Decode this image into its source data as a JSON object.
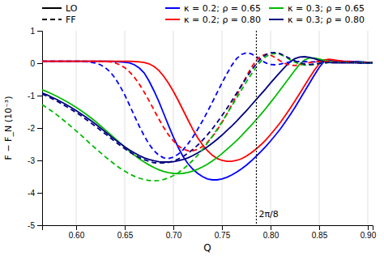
{
  "chart_data": {
    "type": "line",
    "title": "",
    "xlabel": "Q",
    "ylabel": "F − F_N (10⁻³)",
    "xlim": [
      0.565,
      0.905
    ],
    "ylim": [
      -5,
      1
    ],
    "xticks": [
      {
        "value": 0.6,
        "label": "0.60"
      },
      0.65,
      {
        "value": 0.7,
        "label": "0.70"
      },
      0.75,
      {
        "value": 0.8,
        "label": "0.80"
      },
      0.85,
      {
        "value": 0.9,
        "label": "0.90"
      }
    ],
    "yticks": [
      -5,
      -4,
      -3,
      -2,
      -1,
      0,
      1
    ],
    "grid": "x",
    "legend": "upper right",
    "x": [
      0.565,
      0.57,
      0.575,
      0.58,
      0.585,
      0.59,
      0.595,
      0.6,
      0.605,
      0.61,
      0.615,
      0.62,
      0.625,
      0.63,
      0.635,
      0.64,
      0.645,
      0.65,
      0.655,
      0.66,
      0.665,
      0.67,
      0.675,
      0.68,
      0.685,
      0.69,
      0.695,
      0.7,
      0.705,
      0.71,
      0.715,
      0.72,
      0.725,
      0.73,
      0.735,
      0.74,
      0.745,
      0.75,
      0.755,
      0.76,
      0.765,
      0.77,
      0.775,
      0.78,
      0.785,
      0.79,
      0.795,
      0.8,
      0.805,
      0.81,
      0.815,
      0.82,
      0.825,
      0.83,
      0.835,
      0.84,
      0.845,
      0.85,
      0.855,
      0.86,
      0.865,
      0.87,
      0.875,
      0.88,
      0.885,
      0.89,
      0.895,
      0.9,
      0.905
    ],
    "series": [
      {
        "name": "κ = 0.2; ρ = 0.65",
        "color": "#0000ff",
        "line_style": "solid",
        "values": [
          0.06,
          0.06,
          0.06,
          0.06,
          0.06,
          0.06,
          0.06,
          0.06,
          0.06,
          0.06,
          0.06,
          0.06,
          0.06,
          0.06,
          0.06,
          0.05,
          0.04,
          0.03,
          0.01,
          -0.05,
          -0.15,
          -0.3,
          -0.55,
          -0.85,
          -1.18,
          -1.55,
          -1.92,
          -2.28,
          -2.6,
          -2.88,
          -3.1,
          -3.27,
          -3.4,
          -3.5,
          -3.57,
          -3.6,
          -3.6,
          -3.57,
          -3.52,
          -3.45,
          -3.36,
          -3.26,
          -3.15,
          -3.02,
          -2.88,
          -2.73,
          -2.57,
          -2.4,
          -2.22,
          -2.03,
          -1.82,
          -1.6,
          -1.37,
          -1.12,
          -0.87,
          -0.62,
          -0.37,
          -0.13,
          0.05,
          0.08,
          0.08,
          0.07,
          0.06,
          0.06,
          0.05,
          0.05,
          0.04,
          0.03,
          0.02
        ]
      },
      {
        "name": "κ = 0.2; ρ = 0.80",
        "color": "#ff0000",
        "line_style": "solid",
        "values": [
          0.06,
          0.06,
          0.06,
          0.06,
          0.06,
          0.06,
          0.06,
          0.06,
          0.06,
          0.06,
          0.06,
          0.06,
          0.06,
          0.06,
          0.06,
          0.06,
          0.06,
          0.06,
          0.06,
          0.05,
          0.04,
          0.02,
          -0.02,
          -0.1,
          -0.22,
          -0.4,
          -0.62,
          -0.87,
          -1.15,
          -1.45,
          -1.75,
          -2.04,
          -2.3,
          -2.52,
          -2.7,
          -2.84,
          -2.94,
          -3.0,
          -3.03,
          -3.03,
          -3.0,
          -2.95,
          -2.87,
          -2.77,
          -2.65,
          -2.52,
          -2.37,
          -2.2,
          -2.02,
          -1.83,
          -1.62,
          -1.4,
          -1.17,
          -0.93,
          -0.69,
          -0.45,
          -0.22,
          -0.02,
          0.1,
          0.12,
          0.1,
          0.08,
          0.06,
          0.05,
          0.04,
          0.03,
          0.03,
          0.02,
          0.02
        ]
      },
      {
        "name": "κ = 0.3; ρ = 0.65",
        "color": "#00bb00",
        "line_style": "solid",
        "values": [
          -0.82,
          -0.88,
          -0.95,
          -1.02,
          -1.1,
          -1.18,
          -1.27,
          -1.36,
          -1.46,
          -1.57,
          -1.68,
          -1.8,
          -1.93,
          -2.06,
          -2.19,
          -2.32,
          -2.46,
          -2.59,
          -2.72,
          -2.84,
          -2.95,
          -3.05,
          -3.14,
          -3.22,
          -3.29,
          -3.34,
          -3.38,
          -3.4,
          -3.41,
          -3.4,
          -3.37,
          -3.33,
          -3.27,
          -3.2,
          -3.12,
          -3.02,
          -2.91,
          -2.79,
          -2.66,
          -2.53,
          -2.39,
          -2.24,
          -2.08,
          -1.92,
          -1.75,
          -1.58,
          -1.4,
          -1.21,
          -1.02,
          -0.82,
          -0.62,
          -0.42,
          -0.22,
          -0.03,
          0.1,
          0.16,
          0.16,
          0.13,
          0.09,
          0.06,
          0.04,
          0.03,
          0.02,
          0.02,
          0.02,
          0.02,
          0.01,
          0.01,
          0.01
        ]
      },
      {
        "name": "κ = 0.3; ρ = 0.80",
        "color": "#000080",
        "line_style": "solid",
        "values": [
          -0.92,
          -0.98,
          -1.05,
          -1.12,
          -1.2,
          -1.28,
          -1.37,
          -1.46,
          -1.56,
          -1.66,
          -1.77,
          -1.88,
          -2.0,
          -2.12,
          -2.24,
          -2.36,
          -2.47,
          -2.58,
          -2.68,
          -2.77,
          -2.85,
          -2.92,
          -2.97,
          -3.01,
          -3.04,
          -3.05,
          -3.05,
          -3.04,
          -3.01,
          -2.97,
          -2.92,
          -2.85,
          -2.77,
          -2.68,
          -2.58,
          -2.47,
          -2.35,
          -2.22,
          -2.08,
          -1.94,
          -1.79,
          -1.63,
          -1.47,
          -1.3,
          -1.13,
          -0.96,
          -0.79,
          -0.61,
          -0.44,
          -0.27,
          -0.11,
          0.04,
          0.14,
          0.19,
          0.2,
          0.18,
          0.14,
          0.09,
          0.05,
          0.02,
          0.01,
          0.01,
          0.01,
          0.01,
          0.01,
          0.01,
          0.01,
          0.01,
          0.01
        ]
      },
      {
        "color": "#0000ff",
        "line_style": "dashed",
        "values": [
          0.06,
          0.06,
          0.06,
          0.06,
          0.06,
          0.06,
          0.06,
          0.06,
          0.06,
          0.05,
          0.03,
          0.0,
          -0.05,
          -0.14,
          -0.27,
          -0.46,
          -0.7,
          -0.98,
          -1.3,
          -1.63,
          -1.95,
          -2.24,
          -2.5,
          -2.7,
          -2.84,
          -2.92,
          -2.94,
          -2.9,
          -2.81,
          -2.67,
          -2.49,
          -2.28,
          -2.04,
          -1.78,
          -1.5,
          -1.21,
          -0.91,
          -0.61,
          -0.33,
          -0.07,
          0.14,
          0.27,
          0.32,
          0.29,
          0.21,
          0.1,
          0.01,
          -0.04,
          -0.05,
          -0.03,
          0.01,
          0.04,
          0.05,
          0.05,
          0.05,
          0.04,
          0.04,
          0.03,
          0.03,
          0.02,
          0.02,
          0.02,
          0.02,
          0.02,
          0.02,
          0.02,
          0.01,
          0.01,
          0.01
        ]
      },
      {
        "color": "#ff0000",
        "line_style": "dashed",
        "values": [
          0.06,
          0.06,
          0.06,
          0.06,
          0.06,
          0.06,
          0.06,
          0.06,
          0.06,
          0.06,
          0.06,
          0.06,
          0.06,
          0.05,
          0.04,
          0.01,
          -0.05,
          -0.14,
          -0.27,
          -0.44,
          -0.65,
          -0.89,
          -1.16,
          -1.44,
          -1.72,
          -1.98,
          -2.21,
          -2.4,
          -2.55,
          -2.65,
          -2.7,
          -2.7,
          -2.66,
          -2.57,
          -2.44,
          -2.27,
          -2.07,
          -1.83,
          -1.57,
          -1.29,
          -1.0,
          -0.7,
          -0.41,
          -0.14,
          0.08,
          0.22,
          0.27,
          0.25,
          0.17,
          0.07,
          -0.01,
          -0.06,
          -0.07,
          -0.05,
          -0.01,
          0.02,
          0.04,
          0.05,
          0.05,
          0.05,
          0.04,
          0.04,
          0.03,
          0.03,
          0.02,
          0.02,
          0.02,
          0.02,
          0.01
        ]
      },
      {
        "color": "#00bb00",
        "line_style": "dashed",
        "values": [
          -1.28,
          -1.38,
          -1.48,
          -1.59,
          -1.71,
          -1.83,
          -1.96,
          -2.09,
          -2.22,
          -2.36,
          -2.5,
          -2.63,
          -2.76,
          -2.89,
          -3.01,
          -3.13,
          -3.24,
          -3.33,
          -3.42,
          -3.49,
          -3.55,
          -3.59,
          -3.62,
          -3.63,
          -3.62,
          -3.59,
          -3.54,
          -3.47,
          -3.38,
          -3.27,
          -3.14,
          -3.0,
          -2.84,
          -2.66,
          -2.47,
          -2.26,
          -2.04,
          -1.81,
          -1.57,
          -1.33,
          -1.08,
          -0.83,
          -0.58,
          -0.35,
          -0.13,
          0.06,
          0.2,
          0.28,
          0.3,
          0.27,
          0.2,
          0.11,
          0.03,
          -0.03,
          -0.06,
          -0.06,
          -0.04,
          -0.01,
          0.01,
          0.02,
          0.03,
          0.03,
          0.03,
          0.03,
          0.02,
          0.02,
          0.02,
          0.01,
          0.01
        ]
      },
      {
        "color": "#000080",
        "line_style": "dashed",
        "values": [
          -0.95,
          -1.02,
          -1.09,
          -1.17,
          -1.25,
          -1.34,
          -1.43,
          -1.52,
          -1.62,
          -1.73,
          -1.84,
          -1.95,
          -2.07,
          -2.18,
          -2.3,
          -2.42,
          -2.53,
          -2.64,
          -2.74,
          -2.83,
          -2.91,
          -2.98,
          -3.03,
          -3.07,
          -3.08,
          -3.08,
          -3.06,
          -3.02,
          -2.96,
          -2.88,
          -2.78,
          -2.66,
          -2.53,
          -2.38,
          -2.21,
          -2.03,
          -1.83,
          -1.62,
          -1.4,
          -1.17,
          -0.93,
          -0.69,
          -0.46,
          -0.23,
          -0.03,
          0.14,
          0.26,
          0.32,
          0.33,
          0.29,
          0.22,
          0.14,
          0.07,
          0.01,
          -0.03,
          -0.04,
          -0.03,
          -0.01,
          0.01,
          0.02,
          0.03,
          0.03,
          0.02,
          0.02,
          0.02,
          0.01,
          0.01,
          0.01,
          0.01
        ]
      }
    ],
    "style_legend": [
      {
        "name": "LO",
        "color": "#000000",
        "line_style": "solid"
      },
      {
        "name": "FF",
        "color": "#000000",
        "line_style": "dashed"
      }
    ],
    "vline": {
      "x": 0.7853981633974483,
      "color": "#000000",
      "line_style": "dotted"
    },
    "annotations": [
      {
        "text": "2π/8",
        "x": 0.7853981633974483,
        "y": -4.75
      }
    ]
  }
}
